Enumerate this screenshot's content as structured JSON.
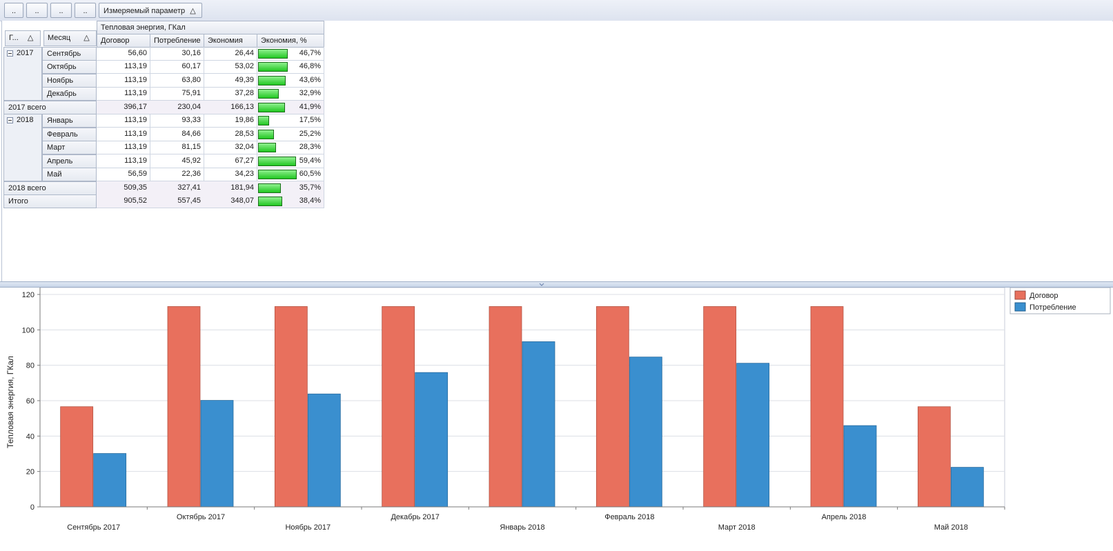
{
  "toolbar": {
    "filter_buttons": [
      "..",
      "..",
      "..",
      ".."
    ],
    "measure_button": "Измеряемый параметр",
    "sort_icon": "sort-asc-icon"
  },
  "pivot": {
    "row_field_headers": [
      "Г...",
      "Месяц"
    ],
    "group_header": "Тепловая энергия, ГКал",
    "columns": [
      "Договор",
      "Потребление",
      "Экономия",
      "Экономия, %"
    ],
    "rows": [
      {
        "year": "2017",
        "month": "Сентябрь",
        "values": [
          "56,60",
          "30,16",
          "26,44",
          "46,7%"
        ],
        "pct": 46.7
      },
      {
        "month": "Октябрь",
        "values": [
          "113,19",
          "60,17",
          "53,02",
          "46,8%"
        ],
        "pct": 46.8
      },
      {
        "month": "Ноябрь",
        "values": [
          "113,19",
          "63,80",
          "49,39",
          "43,6%"
        ],
        "pct": 43.6
      },
      {
        "month": "Декабрь",
        "values": [
          "113,19",
          "75,91",
          "37,28",
          "32,9%"
        ],
        "pct": 32.9
      },
      {
        "total": "2017 всего",
        "values": [
          "396,17",
          "230,04",
          "166,13",
          "41,9%"
        ],
        "pct": 41.9
      },
      {
        "year": "2018",
        "month": "Январь",
        "values": [
          "113,19",
          "93,33",
          "19,86",
          "17,5%"
        ],
        "pct": 17.5
      },
      {
        "month": "Февраль",
        "values": [
          "113,19",
          "84,66",
          "28,53",
          "25,2%"
        ],
        "pct": 25.2
      },
      {
        "month": "Март",
        "values": [
          "113,19",
          "81,15",
          "32,04",
          "28,3%"
        ],
        "pct": 28.3
      },
      {
        "month": "Апрель",
        "values": [
          "113,19",
          "45,92",
          "67,27",
          "59,4%"
        ],
        "pct": 59.4
      },
      {
        "month": "Май",
        "values": [
          "56,59",
          "22,36",
          "34,23",
          "60,5%"
        ],
        "pct": 60.5
      },
      {
        "total": "2018 всего",
        "values": [
          "509,35",
          "327,41",
          "181,94",
          "35,7%"
        ],
        "pct": 35.7
      },
      {
        "total": "Итого",
        "values": [
          "905,52",
          "557,45",
          "348,07",
          "38,4%"
        ],
        "pct": 38.4
      }
    ]
  },
  "chart_data": {
    "type": "bar",
    "categories": [
      "Сентябрь 2017",
      "Октябрь 2017",
      "Ноябрь 2017",
      "Декабрь 2017",
      "Январь 2018",
      "Февраль 2018",
      "Март 2018",
      "Апрель 2018",
      "Май 2018"
    ],
    "series": [
      {
        "name": "Договор",
        "color": "#e8705d",
        "values": [
          56.6,
          113.19,
          113.19,
          113.19,
          113.19,
          113.19,
          113.19,
          113.19,
          56.59
        ]
      },
      {
        "name": "Потребление",
        "color": "#3a8fcf",
        "values": [
          30.16,
          60.17,
          63.8,
          75.91,
          93.33,
          84.66,
          81.15,
          45.92,
          22.36
        ]
      }
    ],
    "ylabel": "Тепловая энергия, ГКал",
    "xlabel": "",
    "ylim": [
      0,
      120
    ],
    "yticks": [
      0,
      20,
      40,
      60,
      80,
      100,
      120
    ],
    "grid": true,
    "legend_position": "top-right"
  }
}
